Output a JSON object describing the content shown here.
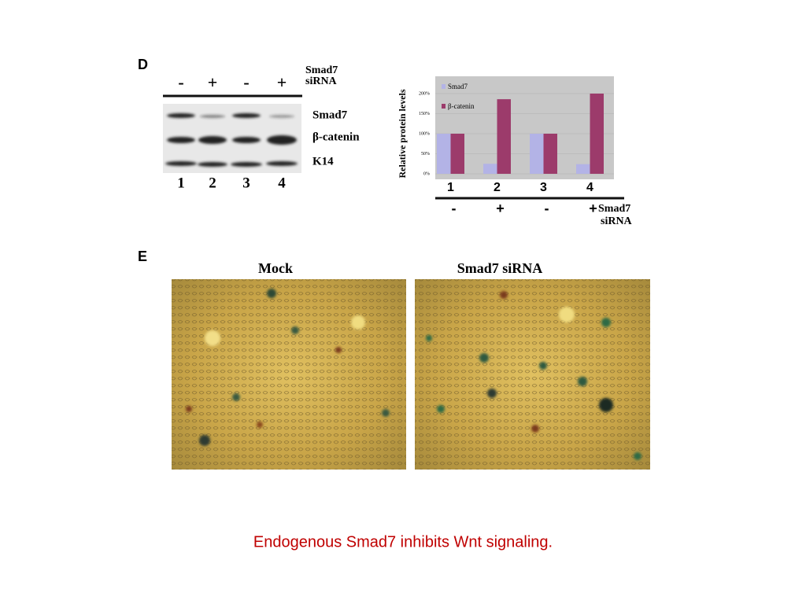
{
  "panel_d": {
    "label": "D",
    "blot": {
      "treatments": [
        "-",
        "+",
        "-",
        "+"
      ],
      "treatment_label": [
        "Smad7",
        "siRNA"
      ],
      "rows": [
        "Smad7",
        "β-catenin",
        "K14"
      ],
      "lanes": [
        "1",
        "2",
        "3",
        "4"
      ]
    }
  },
  "chart_data": {
    "type": "bar",
    "ylabel": "Relative protein levels",
    "categories": [
      "1",
      "2",
      "3",
      "4"
    ],
    "series": [
      {
        "name": "Smad7",
        "color": "#b3b3e6",
        "values": [
          100,
          25,
          100,
          24
        ]
      },
      {
        "name": "β-catenin",
        "color": "#9c3b6b",
        "values": [
          100,
          186,
          100,
          200
        ]
      }
    ],
    "ylim": [
      0,
      240
    ],
    "yticks": [
      {
        "value": 0,
        "label": "0%"
      },
      {
        "value": 50,
        "label": "50%"
      },
      {
        "value": 100,
        "label": "100%"
      },
      {
        "value": 150,
        "label": "150%"
      },
      {
        "value": 200,
        "label": "200%"
      }
    ],
    "grid": true,
    "treatments": [
      "-",
      "+",
      "-",
      "+"
    ],
    "treatment_label": [
      "Smad7",
      "siRNA"
    ]
  },
  "panel_e": {
    "label": "E",
    "images": [
      "Mock",
      "Smad7 siRNA"
    ]
  },
  "caption": "Endogenous Smad7 inhibits Wnt signaling."
}
